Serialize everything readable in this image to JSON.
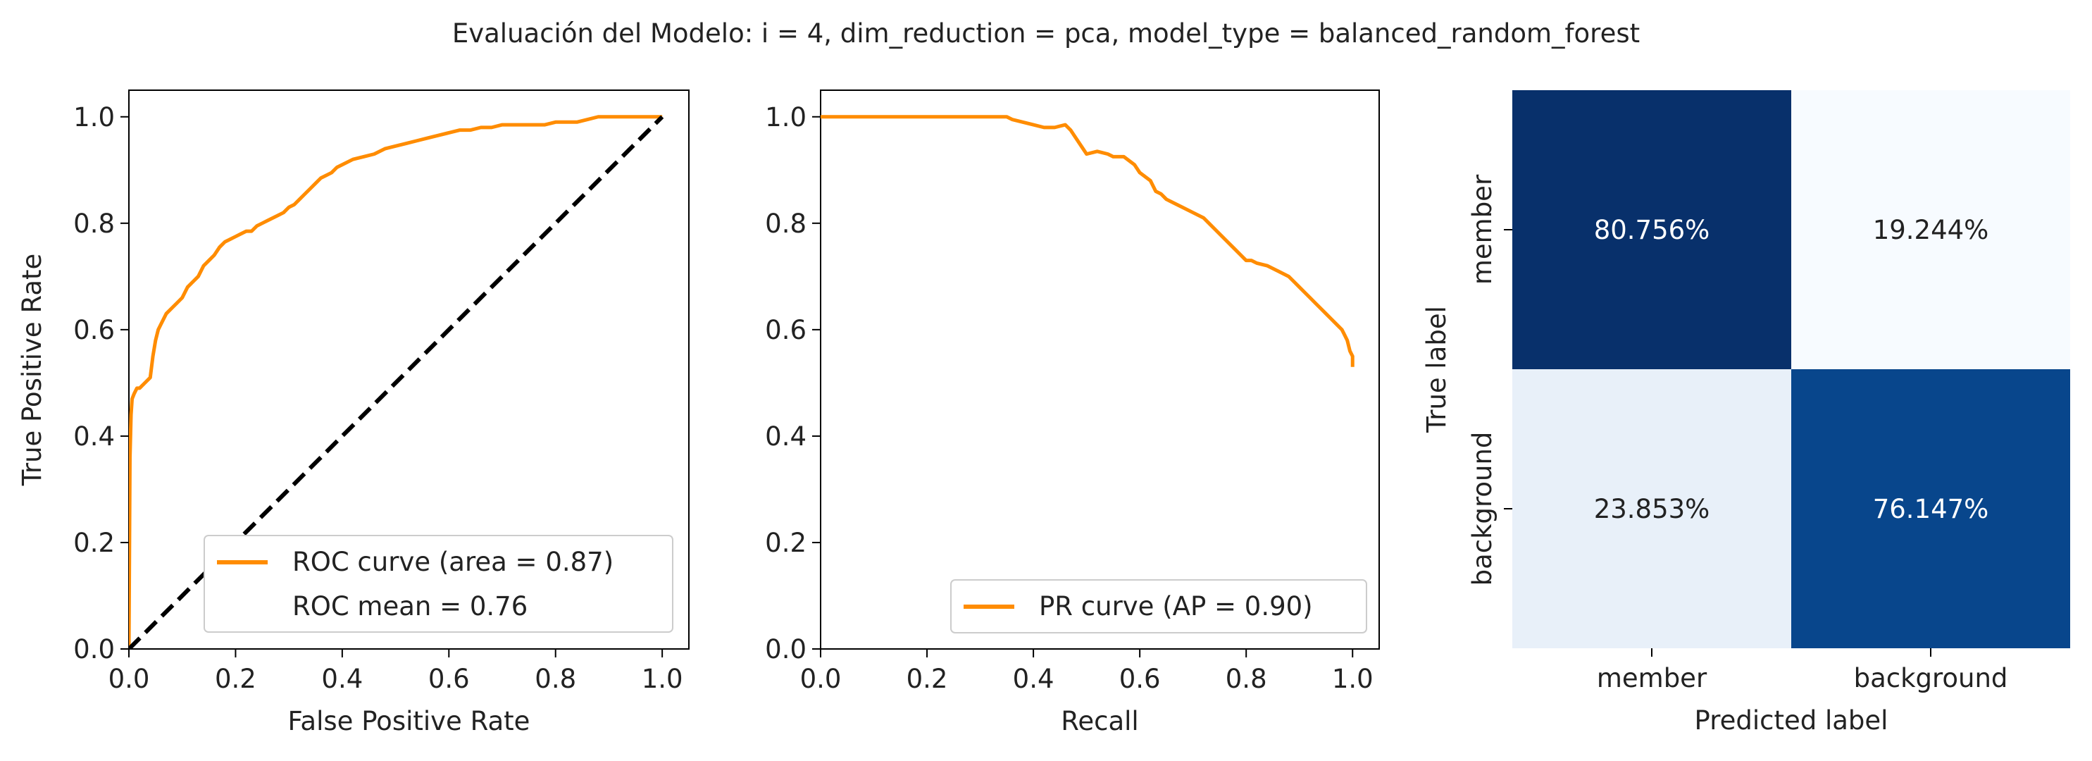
{
  "figure_title": "Evaluación del Modelo: i = 4, dim_reduction = pca, model_type = balanced_random_forest",
  "colors": {
    "curve": "#ff8c00",
    "diagonal": "#000000",
    "axes": "#000000",
    "cm_dark": "#08306b",
    "cm_dark2": "#08468c",
    "cm_light": "#f7fbff",
    "cm_light2": "#e8f0f9"
  },
  "chart_data": [
    {
      "type": "line",
      "xlabel": "False Positive Rate",
      "ylabel": "True Positive Rate",
      "xlim": [
        0.0,
        1.05
      ],
      "ylim": [
        0.0,
        1.05
      ],
      "xticks": [
        "0.0",
        "0.2",
        "0.4",
        "0.6",
        "0.8",
        "1.0"
      ],
      "yticks": [
        "0.0",
        "0.2",
        "0.4",
        "0.6",
        "0.8",
        "1.0"
      ],
      "grid": false,
      "legend_position": "lower-right",
      "series": [
        {
          "name": "ROC curve (area = 0.87)",
          "x": [
            0.0,
            0.002,
            0.004,
            0.006,
            0.01,
            0.015,
            0.02,
            0.03,
            0.04,
            0.045,
            0.05,
            0.055,
            0.06,
            0.07,
            0.08,
            0.09,
            0.1,
            0.11,
            0.12,
            0.13,
            0.14,
            0.15,
            0.16,
            0.17,
            0.18,
            0.19,
            0.2,
            0.21,
            0.22,
            0.23,
            0.24,
            0.25,
            0.26,
            0.27,
            0.28,
            0.29,
            0.3,
            0.31,
            0.32,
            0.33,
            0.34,
            0.35,
            0.36,
            0.37,
            0.38,
            0.39,
            0.4,
            0.42,
            0.44,
            0.46,
            0.48,
            0.5,
            0.52,
            0.54,
            0.56,
            0.58,
            0.6,
            0.62,
            0.64,
            0.66,
            0.68,
            0.7,
            0.72,
            0.74,
            0.76,
            0.78,
            0.8,
            0.82,
            0.84,
            0.86,
            0.88,
            0.9,
            0.92,
            0.94,
            0.96,
            0.98,
            1.0
          ],
          "y": [
            0.0,
            0.36,
            0.44,
            0.47,
            0.48,
            0.49,
            0.49,
            0.5,
            0.51,
            0.55,
            0.58,
            0.6,
            0.61,
            0.63,
            0.64,
            0.65,
            0.66,
            0.68,
            0.69,
            0.7,
            0.72,
            0.73,
            0.74,
            0.755,
            0.765,
            0.77,
            0.775,
            0.78,
            0.785,
            0.785,
            0.795,
            0.8,
            0.805,
            0.81,
            0.815,
            0.82,
            0.83,
            0.835,
            0.845,
            0.855,
            0.865,
            0.875,
            0.885,
            0.89,
            0.895,
            0.905,
            0.91,
            0.92,
            0.925,
            0.93,
            0.94,
            0.945,
            0.95,
            0.955,
            0.96,
            0.965,
            0.97,
            0.975,
            0.975,
            0.98,
            0.98,
            0.985,
            0.985,
            0.985,
            0.985,
            0.985,
            0.99,
            0.99,
            0.99,
            0.995,
            1.0,
            1.0,
            1.0,
            1.0,
            1.0,
            1.0,
            1.0
          ]
        },
        {
          "name": "",
          "x": [
            0.0,
            1.0
          ],
          "y": [
            0.0,
            1.0
          ]
        }
      ],
      "legend_entries": [
        "ROC curve (area = 0.87)",
        "ROC mean = 0.76"
      ]
    },
    {
      "type": "line",
      "xlabel": "Recall",
      "ylabel": "",
      "xlim": [
        0.0,
        1.05
      ],
      "ylim": [
        0.0,
        1.05
      ],
      "xticks": [
        "0.0",
        "0.2",
        "0.4",
        "0.6",
        "0.8",
        "1.0"
      ],
      "yticks": [
        "0.0",
        "0.2",
        "0.4",
        "0.6",
        "0.8",
        "1.0"
      ],
      "grid": false,
      "legend_position": "lower-right",
      "series": [
        {
          "name": "PR curve (AP = 0.90)",
          "x": [
            0.0,
            0.1,
            0.2,
            0.3,
            0.35,
            0.36,
            0.38,
            0.4,
            0.42,
            0.44,
            0.46,
            0.47,
            0.48,
            0.49,
            0.5,
            0.52,
            0.54,
            0.55,
            0.57,
            0.59,
            0.6,
            0.62,
            0.63,
            0.64,
            0.65,
            0.66,
            0.68,
            0.7,
            0.72,
            0.73,
            0.74,
            0.76,
            0.78,
            0.79,
            0.8,
            0.81,
            0.82,
            0.84,
            0.86,
            0.88,
            0.89,
            0.9,
            0.91,
            0.92,
            0.93,
            0.94,
            0.95,
            0.96,
            0.97,
            0.98,
            0.985,
            0.99,
            0.995,
            1.0,
            1.0
          ],
          "y": [
            1.0,
            1.0,
            1.0,
            1.0,
            1.0,
            0.995,
            0.99,
            0.985,
            0.98,
            0.98,
            0.985,
            0.975,
            0.96,
            0.945,
            0.93,
            0.935,
            0.93,
            0.925,
            0.925,
            0.91,
            0.895,
            0.88,
            0.86,
            0.855,
            0.845,
            0.84,
            0.83,
            0.82,
            0.81,
            0.8,
            0.79,
            0.77,
            0.75,
            0.74,
            0.73,
            0.73,
            0.725,
            0.72,
            0.71,
            0.7,
            0.69,
            0.68,
            0.67,
            0.66,
            0.65,
            0.64,
            0.63,
            0.62,
            0.61,
            0.6,
            0.59,
            0.58,
            0.56,
            0.55,
            0.53
          ]
        }
      ],
      "legend_entries": [
        "PR curve (AP = 0.90)"
      ]
    },
    {
      "type": "heatmap",
      "xlabel": "Predicted label",
      "ylabel": "True label",
      "x_categories": [
        "member",
        "background"
      ],
      "y_categories": [
        "member",
        "background"
      ],
      "cells": [
        [
          {
            "label": "80.756%",
            "value": 80.756
          },
          {
            "label": "19.244%",
            "value": 19.244
          }
        ],
        [
          {
            "label": "23.853%",
            "value": 23.853
          },
          {
            "label": "76.147%",
            "value": 76.147
          }
        ]
      ]
    }
  ]
}
